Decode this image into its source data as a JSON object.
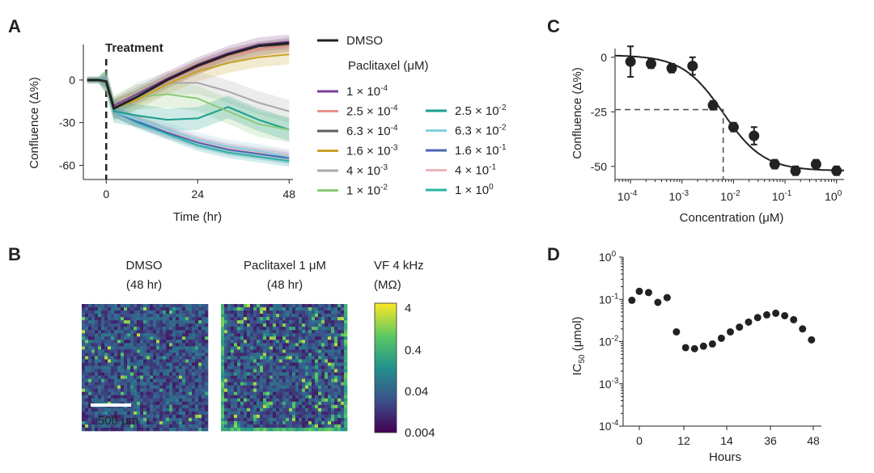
{
  "panels": {
    "A": "A",
    "B": "B",
    "C": "C",
    "D": "D"
  },
  "chart_data": [
    {
      "panel": "A",
      "type": "line",
      "xlabel": "Time (hr)",
      "ylabel": "Confluence (Δ%)",
      "xticks": [
        "0",
        "24",
        "48"
      ],
      "yticks": [
        "0",
        "-30",
        "-60"
      ],
      "xlim": [
        -6,
        49
      ],
      "ylim": [
        -70,
        25
      ],
      "annotation": "Treatment",
      "treatment_time": 0,
      "legend_title": "Paclitaxel (μM)",
      "series": [
        {
          "name": "DMSO",
          "label_base": "DMSO",
          "label_exp": "",
          "color": "#222222",
          "width": 3,
          "band": 0,
          "x": [
            -5,
            -2,
            0,
            2,
            8,
            16,
            24,
            32,
            40,
            48
          ],
          "y": [
            0,
            0,
            -1,
            -20,
            -12,
            0,
            10,
            18,
            24,
            26
          ]
        },
        {
          "name": "1 × 10^-4",
          "label_base": "1 × 10",
          "label_exp": "-4",
          "color": "#7b3f98",
          "width": 2,
          "band": 5,
          "x": [
            -5,
            -2,
            0,
            2,
            8,
            16,
            24,
            32,
            40,
            48
          ],
          "y": [
            0,
            0,
            -1,
            -18,
            -10,
            1,
            11,
            19,
            25,
            27
          ]
        },
        {
          "name": "2.5 × 10^-4",
          "label_base": "2.5 × 10",
          "label_exp": "-4",
          "color": "#e8908a",
          "width": 2,
          "band": 5,
          "x": [
            -5,
            -2,
            0,
            2,
            8,
            16,
            24,
            32,
            40,
            48
          ],
          "y": [
            0,
            0,
            -1,
            -19,
            -12,
            -1,
            9,
            17,
            22,
            24
          ]
        },
        {
          "name": "6.3 × 10^-4",
          "label_base": "6.3 × 10",
          "label_exp": "-4",
          "color": "#5e5e5e",
          "width": 2,
          "band": 5,
          "x": [
            -5,
            -2,
            0,
            2,
            8,
            16,
            24,
            32,
            40,
            48
          ],
          "y": [
            0,
            0,
            -1,
            -19,
            -12,
            -1,
            9,
            17,
            22,
            25
          ]
        },
        {
          "name": "1.6 × 10^-3",
          "label_base": "1.6 × 10",
          "label_exp": "-3",
          "color": "#c9a227",
          "width": 2,
          "band": 7,
          "x": [
            -5,
            -2,
            0,
            2,
            8,
            16,
            24,
            32,
            40,
            48
          ],
          "y": [
            0,
            0,
            -1,
            -20,
            -14,
            -3,
            6,
            12,
            16,
            18
          ]
        },
        {
          "name": "4 × 10^-3",
          "label_base": "4 × 10",
          "label_exp": "-3",
          "color": "#a8a8a8",
          "width": 2,
          "band": 8,
          "x": [
            -5,
            -2,
            0,
            2,
            8,
            16,
            24,
            32,
            40,
            48
          ],
          "y": [
            0,
            0,
            -1,
            -20,
            -10,
            -2,
            -2,
            -8,
            -16,
            -22
          ]
        },
        {
          "name": "1 × 10^-2",
          "label_base": "1 × 10",
          "label_exp": "-2",
          "color": "#8cc97a",
          "width": 2,
          "band": 9,
          "x": [
            -5,
            -2,
            0,
            2,
            8,
            16,
            24,
            32,
            40,
            48
          ],
          "y": [
            0,
            0,
            -1,
            -20,
            -12,
            -10,
            -13,
            -22,
            -31,
            -35
          ]
        },
        {
          "name": "2.5 × 10^-2",
          "label_base": "2.5 × 10",
          "label_exp": "-2",
          "color": "#1a9e8c",
          "width": 2,
          "band": 8,
          "x": [
            -5,
            -2,
            0,
            2,
            8,
            16,
            24,
            32,
            40,
            48
          ],
          "y": [
            0,
            0,
            -1,
            -22,
            -25,
            -28,
            -27,
            -19,
            -28,
            -35
          ]
        },
        {
          "name": "6.3 × 10^-2",
          "label_base": "6.3 × 10",
          "label_exp": "-2",
          "color": "#86cfe3",
          "width": 2,
          "band": 5,
          "x": [
            -5,
            -2,
            0,
            2,
            8,
            16,
            24,
            32,
            40,
            48
          ],
          "y": [
            0,
            0,
            -1,
            -22,
            -28,
            -35,
            -42,
            -47,
            -50,
            -54
          ]
        },
        {
          "name": "1.6 × 10^-1",
          "label_base": "1.6 × 10",
          "label_exp": "-1",
          "color": "#4668b4",
          "width": 2,
          "band": 4,
          "x": [
            -5,
            -2,
            0,
            2,
            8,
            16,
            24,
            32,
            40,
            48
          ],
          "y": [
            0,
            0,
            -1,
            -22,
            -29,
            -37,
            -44,
            -49,
            -52,
            -55
          ]
        },
        {
          "name": "4 × 10^-1",
          "label_base": "4 × 10",
          "label_exp": "-1",
          "color": "#f0b3b8",
          "width": 2,
          "band": 4,
          "x": [
            -5,
            -2,
            0,
            2,
            8,
            16,
            24,
            32,
            40,
            48
          ],
          "y": [
            0,
            0,
            -1,
            -22,
            -29,
            -36,
            -43,
            -48,
            -51,
            -53
          ]
        },
        {
          "name": "1 × 10^0",
          "label_base": "1 × 10",
          "label_exp": "0",
          "color": "#2ab3a5",
          "width": 2,
          "band": 4,
          "x": [
            -5,
            -2,
            0,
            2,
            8,
            16,
            24,
            32,
            40,
            48
          ],
          "y": [
            0,
            0,
            -1,
            -22,
            -30,
            -38,
            -46,
            -51,
            -54,
            -57
          ]
        }
      ]
    },
    {
      "panel": "B",
      "type": "heatmap",
      "images": [
        {
          "title": "DMSO",
          "subtitle": "(48 hr)"
        },
        {
          "title": "Paclitaxel 1 μM",
          "subtitle": "(48 hr)"
        }
      ],
      "colorbar_title": "VF 4 kHz",
      "colorbar_unit": "(MΩ)",
      "colorbar_ticks": [
        "4",
        "0.4",
        "0.04",
        "0.004"
      ],
      "colorbar_range": [
        0.004,
        4
      ],
      "log_scale": true,
      "scale_bar": "500 μm",
      "colormap": [
        "#440154",
        "#3b528b",
        "#21918c",
        "#5ec962",
        "#fde725"
      ]
    },
    {
      "panel": "C",
      "type": "scatter",
      "xlabel": "Concentration (μM)",
      "ylabel": "Confluence (Δ%)",
      "xscale": "log",
      "xlim": [
        5e-05,
        1.4
      ],
      "ylim": [
        -56,
        4
      ],
      "xticks": [
        {
          "base": "10",
          "exp": "-4"
        },
        {
          "base": "10",
          "exp": "-3"
        },
        {
          "base": "10",
          "exp": "-2"
        },
        {
          "base": "10",
          "exp": "-1"
        },
        {
          "base": "10",
          "exp": "0"
        }
      ],
      "yticks": [
        "0",
        "-25",
        "-50"
      ],
      "points": [
        {
          "x": 0.0001,
          "y": -2,
          "err": 7
        },
        {
          "x": 0.00025,
          "y": -3,
          "err": 2
        },
        {
          "x": 0.00063,
          "y": -5,
          "err": 2
        },
        {
          "x": 0.0016,
          "y": -4,
          "err": 4
        },
        {
          "x": 0.004,
          "y": -22,
          "err": 2
        },
        {
          "x": 0.01,
          "y": -32,
          "err": 2
        },
        {
          "x": 0.025,
          "y": -36,
          "err": 4
        },
        {
          "x": 0.063,
          "y": -49,
          "err": 2
        },
        {
          "x": 0.16,
          "y": -52,
          "err": 2
        },
        {
          "x": 0.4,
          "y": -49,
          "err": 2
        },
        {
          "x": 1.0,
          "y": -52,
          "err": 2
        }
      ],
      "fit": {
        "top": 1,
        "bottom": -52,
        "ic50": 0.0063,
        "hill": 1.1
      },
      "ic50_marker": {
        "x": 0.0063,
        "y": -24
      }
    },
    {
      "panel": "D",
      "type": "scatter",
      "xlabel": "Hours",
      "ylabel_base": "IC",
      "ylabel_sub": "50",
      "ylabel_unit": " (μmol)",
      "yscale": "log",
      "ylim": [
        0.0001,
        1
      ],
      "xticks": [
        "0",
        "12",
        "14",
        "36",
        "48"
      ],
      "yticks": [
        {
          "base": "10",
          "exp": "0"
        },
        {
          "base": "10",
          "exp": "-1"
        },
        {
          "base": "10",
          "exp": "-2"
        },
        {
          "base": "10",
          "exp": "-3"
        },
        {
          "base": "10",
          "exp": "-4"
        }
      ],
      "points": [
        {
          "x": -2,
          "y": 0.095
        },
        {
          "x": 0,
          "y": 0.155
        },
        {
          "x": 2.5,
          "y": 0.145
        },
        {
          "x": 5,
          "y": 0.085
        },
        {
          "x": 7.5,
          "y": 0.11
        },
        {
          "x": 10,
          "y": 0.017
        },
        {
          "x": 12.5,
          "y": 0.0072
        },
        {
          "x": 15,
          "y": 0.0068
        },
        {
          "x": 17.5,
          "y": 0.0078
        },
        {
          "x": 20,
          "y": 0.0088
        },
        {
          "x": 22.5,
          "y": 0.012
        },
        {
          "x": 25,
          "y": 0.017
        },
        {
          "x": 27.5,
          "y": 0.022
        },
        {
          "x": 30,
          "y": 0.029
        },
        {
          "x": 32.5,
          "y": 0.037
        },
        {
          "x": 35,
          "y": 0.043
        },
        {
          "x": 37.5,
          "y": 0.047
        },
        {
          "x": 40,
          "y": 0.041
        },
        {
          "x": 42.5,
          "y": 0.033
        },
        {
          "x": 45,
          "y": 0.02
        },
        {
          "x": 47.5,
          "y": 0.011
        }
      ]
    }
  ]
}
